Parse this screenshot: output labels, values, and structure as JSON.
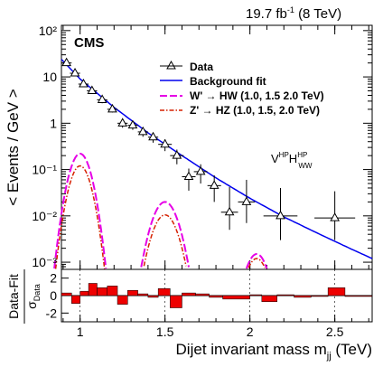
{
  "lumi_label": "19.7 fb",
  "lumi_sup": "-1",
  "lumi_energy": "(8 TeV)",
  "experiment": "CMS",
  "category_main": "V",
  "category_sup1": "HP",
  "category_main2": "H",
  "category_sup2": "HP",
  "category_sub2": "WW",
  "legend": {
    "data": "Data",
    "fit": "Background fit",
    "wprime": "W' → HW (1.0, 1.5 2.0 TeV)",
    "zprime": "Z' → HZ (1.0, 1.5, 2.0 TeV)"
  },
  "colors": {
    "fit": "#0000ee",
    "wprime": "#e600e6",
    "zprime": "#d62000",
    "pull": "#ee0000"
  },
  "chart_data": [
    {
      "type": "scatter",
      "panel": "main",
      "ylabel": "< Events / GeV >",
      "yscale": "log",
      "xlim": [
        0.89,
        2.72
      ],
      "ylim": [
        0.0007,
        130
      ],
      "yticks": [
        "10⁻³",
        "10⁻²",
        "10⁻¹",
        "1",
        "10",
        "10²"
      ],
      "series": [
        {
          "name": "Data",
          "x": [
            0.92,
            0.97,
            1.02,
            1.07,
            1.13,
            1.19,
            1.25,
            1.31,
            1.37,
            1.43,
            1.5,
            1.57,
            1.64,
            1.71,
            1.79,
            1.88,
            1.98,
            2.18,
            2.5
          ],
          "xerr": [
            0.03,
            0.03,
            0.03,
            0.03,
            0.03,
            0.03,
            0.03,
            0.03,
            0.03,
            0.03,
            0.04,
            0.04,
            0.04,
            0.04,
            0.04,
            0.05,
            0.05,
            0.1,
            0.12
          ],
          "y": [
            20,
            12,
            7,
            5,
            3.2,
            2.0,
            1.0,
            0.9,
            0.65,
            0.5,
            0.35,
            0.2,
            0.07,
            0.09,
            0.045,
            0.012,
            0.02,
            0.01,
            0.009
          ],
          "yerr_lo": [
            1.5,
            1.0,
            0.8,
            0.6,
            0.5,
            0.3,
            0.2,
            0.18,
            0.14,
            0.12,
            0.1,
            0.07,
            0.035,
            0.04,
            0.025,
            0.007,
            0.013,
            0.007,
            0.006
          ],
          "yerr_hi": [
            1.5,
            1.0,
            0.8,
            0.6,
            0.5,
            0.3,
            0.2,
            0.18,
            0.14,
            0.12,
            0.1,
            0.07,
            0.035,
            0.04,
            0.03,
            0.03,
            0.04,
            0.03,
            0.025
          ]
        }
      ],
      "background_fit": {
        "x": [
          0.89,
          1.0,
          1.2,
          1.4,
          1.6,
          1.8,
          2.0,
          2.2,
          2.4,
          2.6,
          2.72
        ],
        "y": [
          24,
          9,
          2.2,
          0.62,
          0.2,
          0.066,
          0.024,
          0.0095,
          0.0042,
          0.0019,
          0.0012
        ]
      },
      "signals": {
        "wprime": [
          {
            "mass": 1.0,
            "peak": 0.22,
            "sigma": 0.045
          },
          {
            "mass": 1.5,
            "peak": 0.02,
            "sigma": 0.055
          },
          {
            "mass": 2.04,
            "peak": 0.0015,
            "sigma": 0.05
          }
        ],
        "zprime": [
          {
            "mass": 1.0,
            "peak": 0.12,
            "sigma": 0.045
          },
          {
            "mass": 1.5,
            "peak": 0.0105,
            "sigma": 0.055
          },
          {
            "mass": 2.04,
            "peak": 0.0012,
            "sigma": 0.05
          }
        ]
      }
    },
    {
      "type": "bar",
      "panel": "ratio",
      "xlabel": "Dijet invariant mass m",
      "xlabel_sub": "jj",
      "xlabel_unit": "(TeV)",
      "ylabel": "Data-Fit",
      "ylabel_den": "σ",
      "ylabel_den_sub": "Data",
      "ylim": [
        -3,
        3
      ],
      "yticks": [
        "-2",
        "0",
        "2"
      ],
      "xticks": [
        "1",
        "1.5",
        "2",
        "2.5"
      ],
      "xtick_values": [
        1.0,
        1.5,
        2.0,
        2.5
      ],
      "bins": [
        {
          "x0": 0.89,
          "x1": 0.95,
          "v": 0.3
        },
        {
          "x0": 0.95,
          "x1": 1.0,
          "v": -0.9
        },
        {
          "x0": 1.0,
          "x1": 1.05,
          "v": 0.5
        },
        {
          "x0": 1.05,
          "x1": 1.1,
          "v": 1.4
        },
        {
          "x0": 1.1,
          "x1": 1.16,
          "v": 0.9
        },
        {
          "x0": 1.16,
          "x1": 1.22,
          "v": 1.1
        },
        {
          "x0": 1.22,
          "x1": 1.28,
          "v": -1.0
        },
        {
          "x0": 1.28,
          "x1": 1.34,
          "v": 0.6
        },
        {
          "x0": 1.34,
          "x1": 1.4,
          "v": 0.2
        },
        {
          "x0": 1.4,
          "x1": 1.46,
          "v": -0.2
        },
        {
          "x0": 1.46,
          "x1": 1.53,
          "v": 0.8
        },
        {
          "x0": 1.53,
          "x1": 1.6,
          "v": -1.4
        },
        {
          "x0": 1.6,
          "x1": 1.68,
          "v": 0.3
        },
        {
          "x0": 1.68,
          "x1": 1.76,
          "v": 0.2
        },
        {
          "x0": 1.76,
          "x1": 1.84,
          "v": -0.2
        },
        {
          "x0": 1.84,
          "x1": 2.0,
          "v": -0.4
        },
        {
          "x0": 2.0,
          "x1": 2.07,
          "v": 0.1
        },
        {
          "x0": 2.07,
          "x1": 2.16,
          "v": -0.7
        },
        {
          "x0": 2.16,
          "x1": 2.26,
          "v": 0.1
        },
        {
          "x0": 2.26,
          "x1": 2.36,
          "v": -0.2
        },
        {
          "x0": 2.36,
          "x1": 2.46,
          "v": -0.1
        },
        {
          "x0": 2.46,
          "x1": 2.56,
          "v": 0.9
        },
        {
          "x0": 2.56,
          "x1": 2.72,
          "v": -0.1
        }
      ]
    }
  ]
}
